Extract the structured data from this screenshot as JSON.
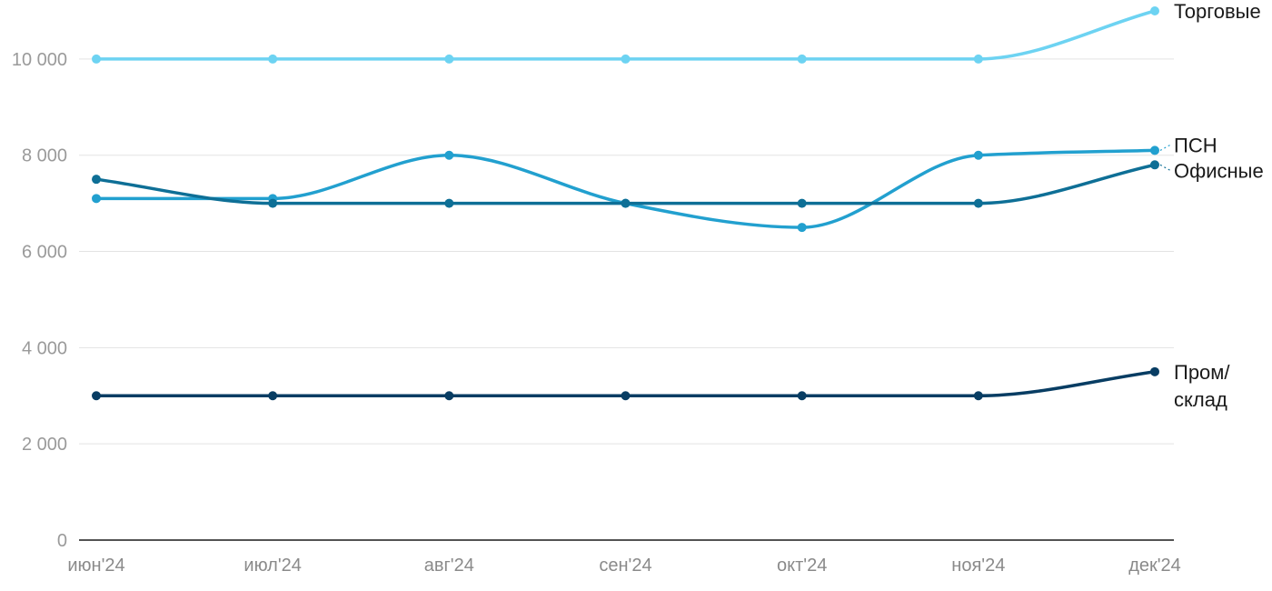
{
  "chart_data": {
    "type": "line",
    "categories": [
      "июн'24",
      "июл'24",
      "авг'24",
      "сен'24",
      "окт'24",
      "ноя'24",
      "дек'24"
    ],
    "ylim": [
      0,
      11000
    ],
    "yticks": [
      0,
      2000,
      4000,
      6000,
      8000,
      10000
    ],
    "ytick_labels": [
      "0",
      "2 000",
      "4 000",
      "6 000",
      "8 000",
      "10 000"
    ],
    "grid": true,
    "series_label_position": "right-end",
    "series": [
      {
        "name": "Торговые",
        "label_lines": [
          "Торговые"
        ],
        "color": "#6dd3f2",
        "values": [
          10000,
          10000,
          10000,
          10000,
          10000,
          10000,
          11000
        ]
      },
      {
        "name": "ПСН",
        "label_lines": [
          "ПСН"
        ],
        "color": "#22a0cf",
        "values": [
          7100,
          7100,
          8000,
          7000,
          6500,
          8000,
          8100
        ]
      },
      {
        "name": "Офисные",
        "label_lines": [
          "Офисные"
        ],
        "color": "#0e6f96",
        "values": [
          7500,
          7000,
          7000,
          7000,
          7000,
          7000,
          7800
        ]
      },
      {
        "name": "Пром/склад",
        "label_lines": [
          "Пром/",
          "склад"
        ],
        "color": "#083d63",
        "values": [
          3000,
          3000,
          3000,
          3000,
          3000,
          3000,
          3500
        ]
      }
    ]
  }
}
